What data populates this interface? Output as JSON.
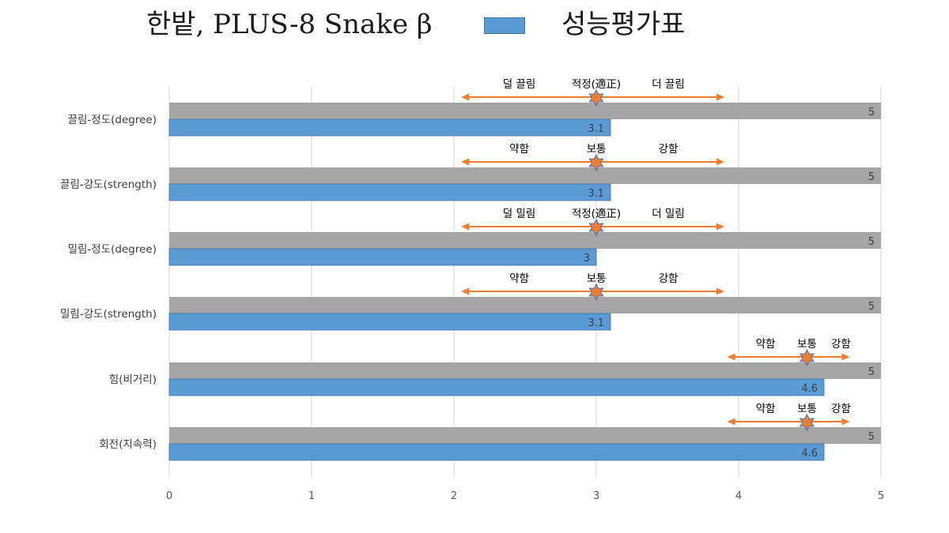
{
  "title": {
    "left": "한밭, PLUS-8 Snake β",
    "right": "성능평가표"
  },
  "colors": {
    "grey_bar": "#a5a5a5",
    "blue_bar": "#5b9bd5",
    "blue_border": "#41719c",
    "arrow": "#ed7d31",
    "star_fill": "#ed7d31",
    "star_stroke": "#4472c4",
    "grid": "#d9d9d9"
  },
  "chart_data": {
    "type": "bar",
    "orientation": "horizontal",
    "xlim": [
      0,
      5
    ],
    "x_ticks": [
      "0",
      "1",
      "2",
      "3",
      "4",
      "5"
    ],
    "grid": true,
    "categories": [
      "끌림-정도(degree)",
      "끌림-강도(strength)",
      "밀림-정도(degree)",
      "밀림-강도(strength)",
      "힘(비거리)",
      "회전(지속력)"
    ],
    "series": [
      {
        "color": "#a5a5a5",
        "values": [
          5,
          5,
          5,
          5,
          5,
          5
        ],
        "labels": [
          "5",
          "5",
          "5",
          "5",
          "5",
          "5"
        ]
      },
      {
        "color": "#5b9bd5",
        "values": [
          3.1,
          3.1,
          3,
          3.1,
          4.6,
          4.6
        ],
        "labels": [
          "3.1",
          "3.1",
          "3",
          "3.1",
          "4.6",
          "4.6"
        ]
      }
    ],
    "annotations": [
      {
        "scale": [
          "덜 끌림",
          "적정(適正)",
          "더 끌림"
        ],
        "range": [
          2.05,
          3.9
        ],
        "marker": 3.0
      },
      {
        "scale": [
          "약함",
          "보통",
          "강함"
        ],
        "range": [
          2.05,
          3.9
        ],
        "marker": 3.0
      },
      {
        "scale": [
          "덜 밀림",
          "적정(適正)",
          "더 밀림"
        ],
        "range": [
          2.05,
          3.9
        ],
        "marker": 3.0
      },
      {
        "scale": [
          "약함",
          "보통",
          "강함"
        ],
        "range": [
          2.05,
          3.9
        ],
        "marker": 3.0
      },
      {
        "scale": [
          "약함",
          "보통",
          "강함"
        ],
        "range": [
          3.92,
          4.78
        ],
        "marker": 4.48
      },
      {
        "scale": [
          "약함",
          "보통",
          "강함"
        ],
        "range": [
          3.92,
          4.78
        ],
        "marker": 4.48
      }
    ]
  }
}
